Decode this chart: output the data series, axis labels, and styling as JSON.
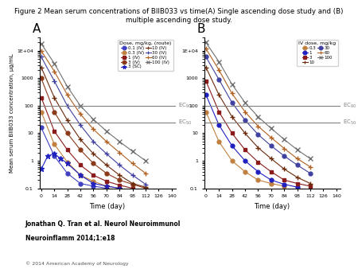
{
  "title": "Figure 2 Mean serum concentrations of BIIB033 vs time(A) Single ascending dose study and (B)\nmultiple ascending dose study.",
  "ylabel": "Mean serum BIIB033 concentration, μg/mL",
  "xlabel": "Time (day)",
  "xticks": [
    0,
    14,
    28,
    42,
    56,
    70,
    84,
    98,
    112,
    126,
    140
  ],
  "ylim": [
    0.1,
    30000
  ],
  "xlim": [
    -2,
    144
  ],
  "EC90_val": 100,
  "EC50_val": 25,
  "footer_line1": "Jonathan Q. Tran et al. Neurol Neuroimmunol",
  "footer_line2": "Neuroinflamm 2014;1:e18",
  "copyright": "© 2014 American Academy of Neurology",
  "panel_A": {
    "label": "A",
    "legend_title": "Dose, mg/kg, (route)",
    "series": [
      {
        "label": "0.1 (IV)",
        "color": "#4040c0",
        "marker": "o",
        "ls": "-",
        "x": [
          0,
          14,
          28,
          42,
          56,
          70
        ],
        "y": [
          16,
          1.5,
          0.35,
          0.15,
          0.12,
          0.1
        ]
      },
      {
        "label": "0.3 (IV)",
        "color": "#c08040",
        "marker": "o",
        "ls": "-",
        "x": [
          0,
          14,
          28,
          42,
          56,
          70,
          84
        ],
        "y": [
          60,
          4,
          0.9,
          0.3,
          0.18,
          0.12,
          0.1
        ]
      },
      {
        "label": "1 (IV)",
        "color": "#8b1a1a",
        "marker": "s",
        "ls": "-",
        "x": [
          0,
          14,
          28,
          42,
          56,
          70,
          84,
          98
        ],
        "y": [
          200,
          12,
          2.5,
          0.7,
          0.3,
          0.18,
          0.13,
          0.1
        ]
      },
      {
        "label": "3 (IV)",
        "color": "#8b3a1a",
        "marker": "o",
        "ls": "-",
        "x": [
          0,
          14,
          28,
          42,
          56,
          70,
          84,
          98,
          112
        ],
        "y": [
          1000,
          60,
          10,
          2.5,
          0.8,
          0.35,
          0.2,
          0.14,
          0.1
        ]
      },
      {
        "label": "3 (SC)",
        "color": "#2020c0",
        "marker": "*",
        "ls": "-",
        "x": [
          0,
          7,
          14,
          21,
          28,
          42,
          56,
          70,
          84
        ],
        "y": [
          0.5,
          1.5,
          1.8,
          1.2,
          0.8,
          0.3,
          0.15,
          0.12,
          0.1
        ]
      },
      {
        "label": "10 (IV)",
        "color": "#6b2a0a",
        "marker": "+",
        "ls": "-",
        "x": [
          0,
          14,
          28,
          42,
          56,
          70,
          84,
          98,
          112
        ],
        "y": [
          2500,
          200,
          30,
          6,
          1.8,
          0.7,
          0.3,
          0.15,
          0.11
        ]
      },
      {
        "label": "30 (IV)",
        "color": "#4040a0",
        "marker": "+",
        "ls": "-",
        "x": [
          0,
          14,
          28,
          42,
          56,
          70,
          84,
          98,
          112
        ],
        "y": [
          6000,
          800,
          100,
          20,
          5,
          1.8,
          0.7,
          0.3,
          0.14
        ]
      },
      {
        "label": "60 (IV)",
        "color": "#b06020",
        "marker": "+",
        "ls": "-",
        "x": [
          0,
          14,
          28,
          42,
          56,
          70,
          84,
          98,
          112
        ],
        "y": [
          10000,
          1800,
          250,
          50,
          14,
          5,
          2,
          0.8,
          0.35
        ]
      },
      {
        "label": "100 (IV)",
        "color": "#707070",
        "marker": "x",
        "ls": "-",
        "x": [
          0,
          14,
          28,
          42,
          56,
          70,
          84,
          98,
          112
        ],
        "y": [
          18000,
          3500,
          500,
          100,
          32,
          12,
          5,
          2.2,
          1.0
        ]
      }
    ]
  },
  "panel_B": {
    "label": "B",
    "legend_title": "IV dose, mg/kg",
    "series": [
      {
        "label": "0.3",
        "color": "#c08040",
        "marker": "o",
        "ls": "-",
        "x": [
          0,
          14,
          28,
          42,
          56,
          70,
          84
        ],
        "y": [
          60,
          5,
          1.0,
          0.4,
          0.2,
          0.15,
          0.12
        ]
      },
      {
        "label": "1",
        "color": "#2020c0",
        "marker": "o",
        "ls": "-",
        "x": [
          0,
          14,
          28,
          42,
          56,
          70,
          84,
          98
        ],
        "y": [
          250,
          20,
          3.5,
          1.0,
          0.4,
          0.2,
          0.14,
          0.11
        ]
      },
      {
        "label": "3",
        "color": "#8b1a1a",
        "marker": "s",
        "ls": "-",
        "x": [
          0,
          14,
          28,
          42,
          56,
          70,
          84,
          98,
          112
        ],
        "y": [
          800,
          60,
          10,
          2.5,
          0.9,
          0.4,
          0.2,
          0.15,
          0.12
        ]
      },
      {
        "label": "10",
        "color": "#6b2a0a",
        "marker": "+",
        "ls": "-",
        "x": [
          0,
          14,
          28,
          42,
          56,
          70,
          84,
          98,
          112
        ],
        "y": [
          2500,
          250,
          40,
          10,
          3,
          1.2,
          0.5,
          0.25,
          0.15
        ]
      },
      {
        "label": "30",
        "color": "#4040a0",
        "marker": "o",
        "ls": "-",
        "x": [
          0,
          14,
          28,
          42,
          56,
          70,
          84,
          98,
          112
        ],
        "y": [
          6000,
          900,
          130,
          30,
          9,
          3.5,
          1.5,
          0.7,
          0.35
        ]
      },
      {
        "label": "60",
        "color": "#b06020",
        "marker": "+",
        "ls": "-",
        "x": [
          0,
          14,
          28,
          42,
          56,
          70,
          84,
          98,
          112
        ],
        "y": [
          12000,
          2000,
          280,
          60,
          18,
          7,
          2.8,
          1.2,
          0.6
        ]
      },
      {
        "label": "100",
        "color": "#707070",
        "marker": "x",
        "ls": "-",
        "x": [
          0,
          14,
          28,
          42,
          56,
          70,
          84,
          98,
          112
        ],
        "y": [
          20000,
          4000,
          600,
          130,
          40,
          15,
          6,
          2.5,
          1.2
        ]
      }
    ]
  }
}
